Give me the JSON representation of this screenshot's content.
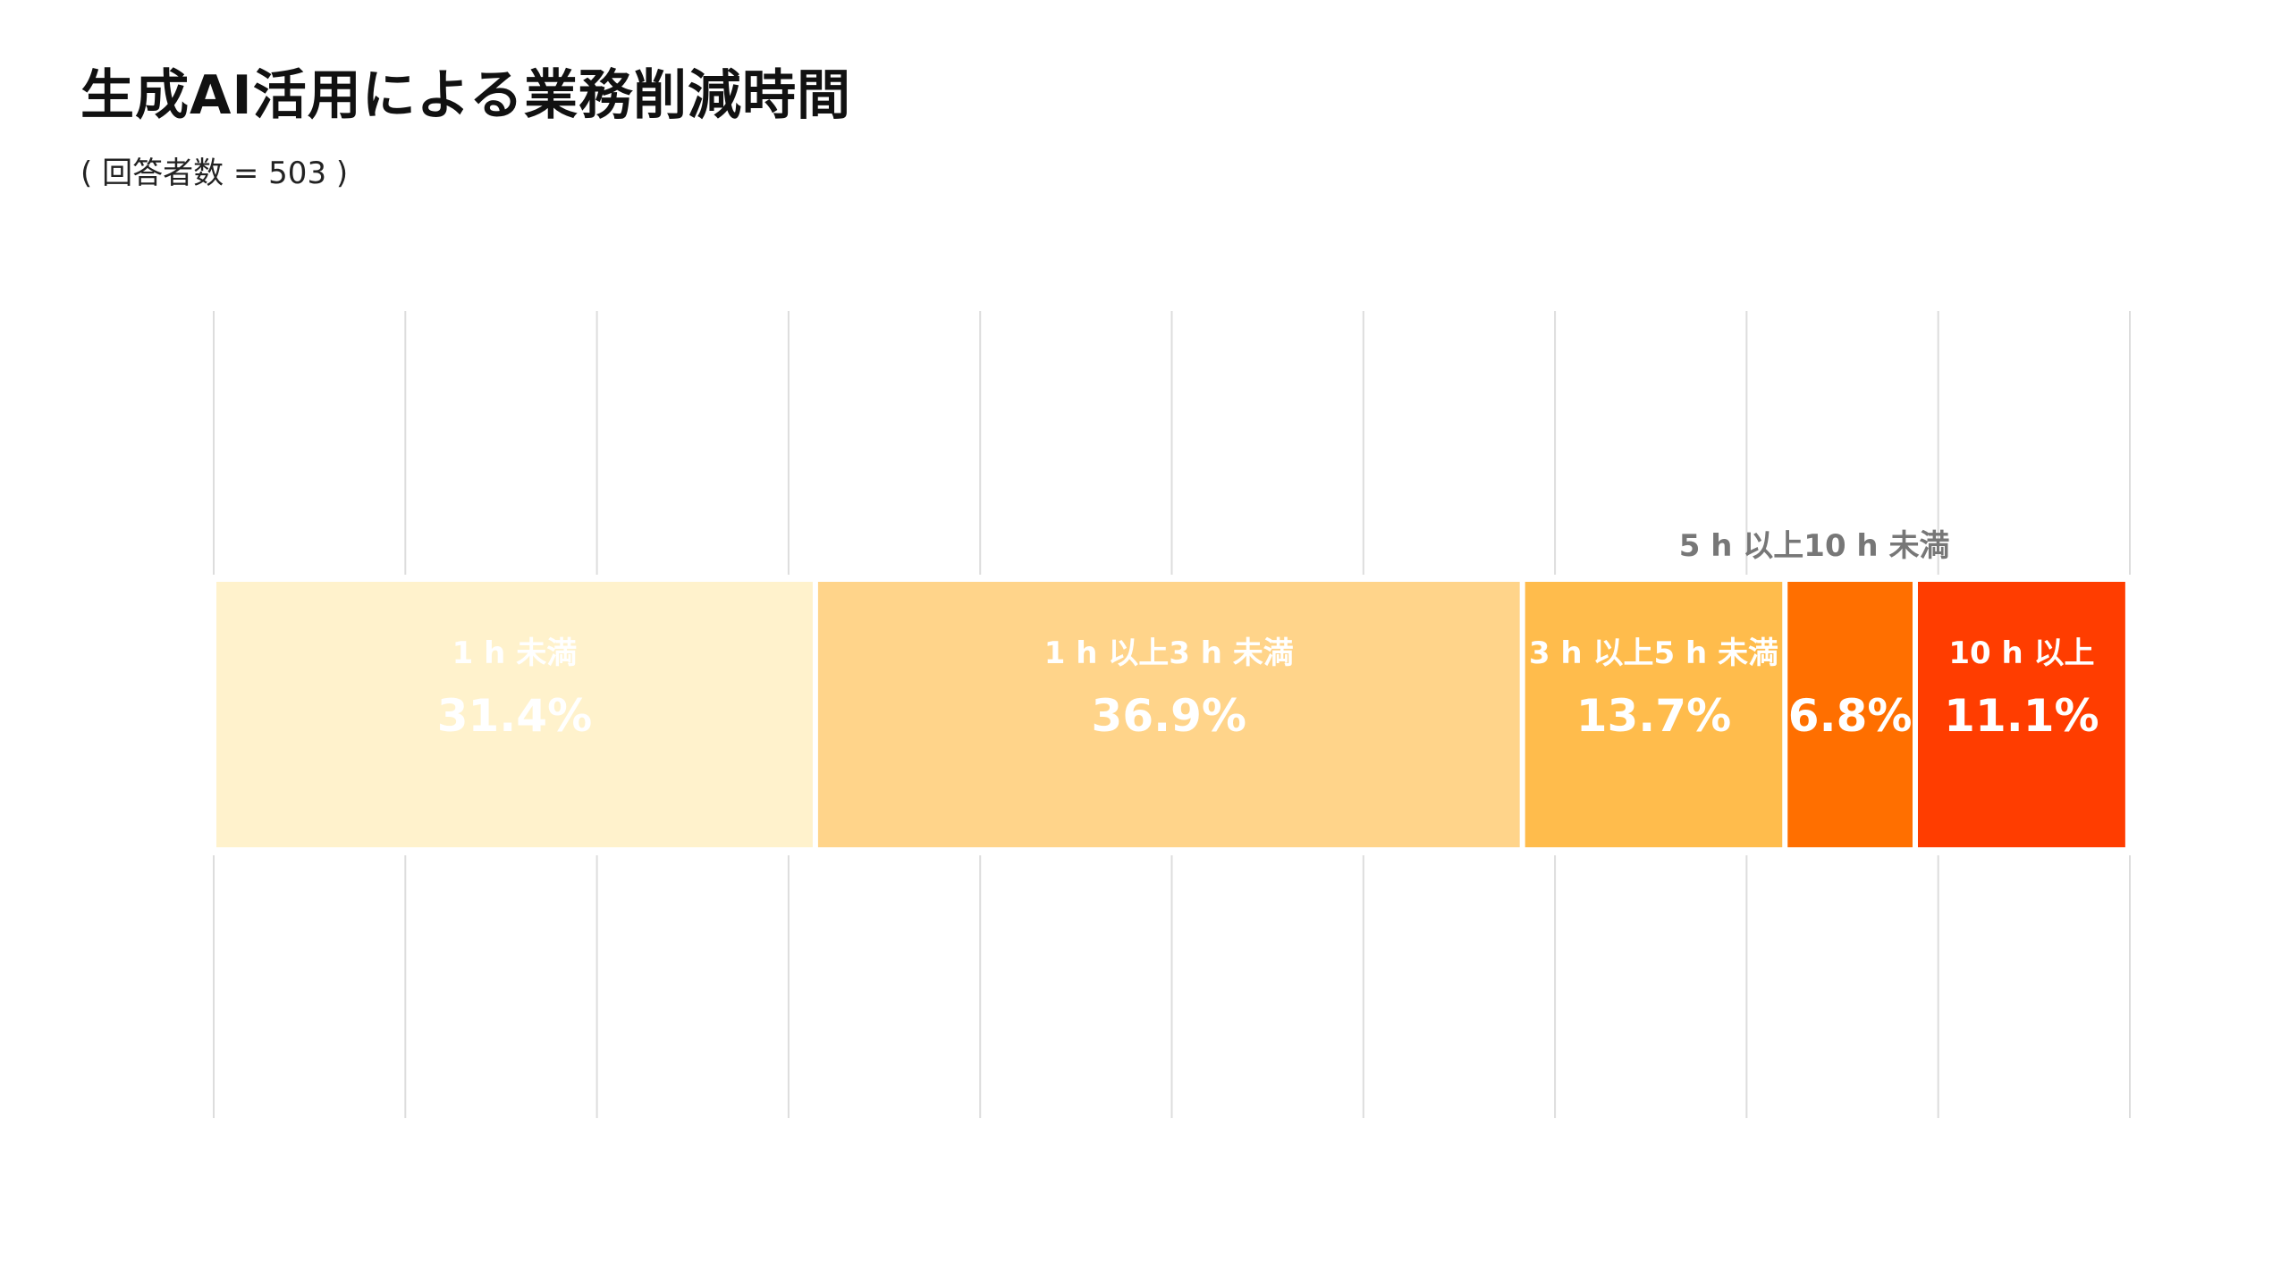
{
  "chart_data": {
    "type": "bar",
    "orientation": "horizontal-stacked-100",
    "title": "生成AI活用による業務削減時間",
    "subtitle": "( 回答者数 = 503 )",
    "categories": [
      "1 h 未満",
      "1 h 以上3 h 未満",
      "3 h 以上5 h 未満",
      "5 h 以上10 h 未満",
      "10 h 以上"
    ],
    "values": [
      31.4,
      36.9,
      13.7,
      6.8,
      11.1
    ],
    "value_labels": [
      "31.4%",
      "36.9%",
      "13.7%",
      "6.8%",
      "11.1%"
    ],
    "colors": [
      "#FFF2CC",
      "#FFD48A",
      "#FFBC4C",
      "#FF6F00",
      "#FF3D00"
    ],
    "outside_label_index": 3,
    "xlim": [
      0,
      100
    ],
    "grid": true,
    "grid_step": 10
  }
}
